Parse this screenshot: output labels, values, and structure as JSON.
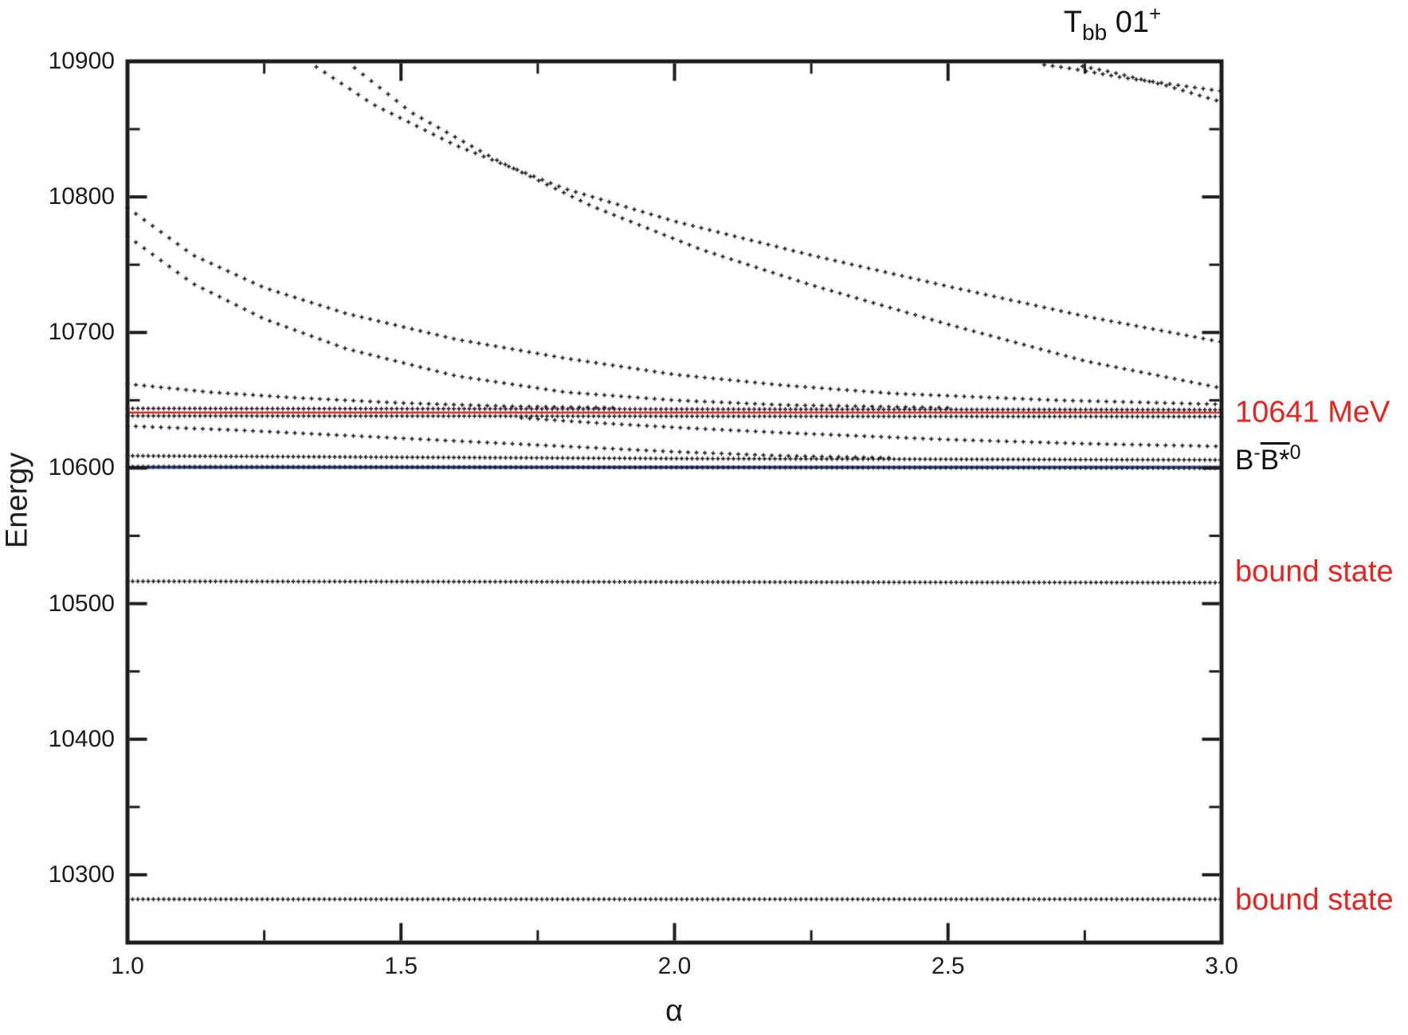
{
  "title": {
    "symbol": "T",
    "subscript": "bb",
    "state": "01",
    "superscript": "+"
  },
  "y_axis": {
    "label": "Energy"
  },
  "x_axis": {
    "label": "α"
  },
  "annotations": {
    "resonance_label": {
      "text": "10641 MeV",
      "color": "#e32621",
      "anchor_energy": 10641
    },
    "threshold_label": {
      "meson1": "B",
      "charge1": "-",
      "meson2": "B*",
      "charge2": "0",
      "color": "#111111",
      "anchor_energy": 10607
    },
    "bound_state_label_1": {
      "text": "bound state",
      "color": "#e32621",
      "anchor_energy": 10523
    },
    "bound_state_label_2": {
      "text": "bound state",
      "color": "#e32621",
      "anchor_energy": 10281
    }
  },
  "chart_data": {
    "type": "scatter",
    "title": "T_bb 01+ real-scaling energy spectrum",
    "xlabel": "α",
    "ylabel": "Energy",
    "xlim": [
      1.0,
      3.0
    ],
    "ylim": [
      10250,
      10900
    ],
    "x_major_ticks": [
      "1.0",
      "1.5",
      "2.0",
      "2.5",
      "3.0"
    ],
    "x_major_tick_values": [
      1.0,
      1.5,
      2.0,
      2.5,
      3.0
    ],
    "x_minor_tick_values": [
      1.25,
      1.75,
      2.25,
      2.75
    ],
    "y_major_ticks": [
      "10900",
      "10800",
      "10700",
      "10600",
      "10500",
      "10400",
      "10300"
    ],
    "y_major_tick_values": [
      10900,
      10800,
      10700,
      10600,
      10500,
      10400,
      10300
    ],
    "y_minor_tick_values": [
      10850,
      10750,
      10650,
      10550,
      10450,
      10350
    ],
    "grid": false,
    "marker": "plus",
    "marker_color": "#1c1c1c",
    "reference_lines": [
      {
        "name": "resonance-10641",
        "energy": 10641,
        "color": "#e32621",
        "width": 2.5
      },
      {
        "name": "threshold-B-Bstar0",
        "energy": 10600.5,
        "color": "#3a4d9e",
        "width": 4
      }
    ],
    "series": [
      {
        "name": "bound-state-1",
        "step": 6.5,
        "points": [
          [
            1.0,
            10282
          ],
          [
            3.0,
            10282
          ]
        ]
      },
      {
        "name": "bound-state-2",
        "step": 6.5,
        "points": [
          [
            1.0,
            10516.5
          ],
          [
            3.0,
            10515.5
          ]
        ]
      },
      {
        "name": "threshold-row-lower",
        "step": 6.5,
        "points": [
          [
            1.0,
            10601
          ],
          [
            3.0,
            10600
          ]
        ]
      },
      {
        "name": "threshold-row-upper",
        "step": 6.5,
        "points": [
          [
            1.0,
            10609
          ],
          [
            1.5,
            10608
          ],
          [
            2.0,
            10607
          ],
          [
            3.0,
            10606
          ]
        ]
      },
      {
        "name": "red-row-upper",
        "step": 6.5,
        "points": [
          [
            1.0,
            10644
          ],
          [
            3.0,
            10643
          ]
        ]
      },
      {
        "name": "red-row-lower",
        "step": 6.5,
        "points": [
          [
            1.0,
            10638.5
          ],
          [
            3.0,
            10638
          ]
        ]
      },
      {
        "name": "scatter-D1",
        "step": 10.5,
        "points": [
          [
            1.0,
            10662
          ],
          [
            1.15,
            10656
          ],
          [
            1.3,
            10652
          ],
          [
            1.5,
            10648
          ],
          [
            1.7,
            10645.5
          ],
          [
            1.9,
            10644.5
          ]
        ]
      },
      {
        "name": "scatter-D3",
        "step": 10.5,
        "points": [
          [
            1.0,
            10631
          ],
          [
            1.2,
            10628
          ],
          [
            1.4,
            10624
          ],
          [
            1.6,
            10620
          ],
          [
            1.8,
            10616
          ],
          [
            2.0,
            10612
          ],
          [
            2.2,
            10609
          ],
          [
            2.4,
            10607.5
          ]
        ]
      },
      {
        "name": "scatter-D2",
        "step": 10.5,
        "points": [
          [
            1.72,
            10637
          ],
          [
            1.85,
            10633.5
          ],
          [
            2.0,
            10630
          ],
          [
            2.2,
            10626
          ],
          [
            2.5,
            10621
          ],
          [
            2.75,
            10618
          ],
          [
            3.0,
            10616
          ]
        ]
      },
      {
        "name": "scatter-D4",
        "step": 10.5,
        "points": [
          [
            1.0,
            10792
          ],
          [
            1.12,
            10757
          ],
          [
            1.25,
            10733
          ],
          [
            1.4,
            10714
          ],
          [
            1.6,
            10695
          ],
          [
            1.8,
            10681
          ],
          [
            2.0,
            10669
          ],
          [
            2.2,
            10661
          ],
          [
            2.4,
            10655
          ],
          [
            2.7,
            10650
          ],
          [
            3.0,
            10647
          ]
        ]
      },
      {
        "name": "scatter-D5",
        "step": 10.5,
        "points": [
          [
            1.0,
            10771
          ],
          [
            1.12,
            10736
          ],
          [
            1.25,
            10710
          ],
          [
            1.4,
            10688
          ],
          [
            1.6,
            10668
          ],
          [
            1.8,
            10656
          ],
          [
            2.0,
            10650
          ],
          [
            2.2,
            10646.5
          ],
          [
            2.5,
            10644.5
          ]
        ]
      },
      {
        "name": "scatter-P2a",
        "step": 10.5,
        "points": [
          [
            1.33,
            10900
          ],
          [
            1.45,
            10868
          ],
          [
            1.6,
            10838
          ],
          [
            1.8,
            10806
          ],
          [
            2.0,
            10782
          ],
          [
            2.25,
            10757
          ],
          [
            2.5,
            10734
          ],
          [
            2.75,
            10712
          ],
          [
            3.0,
            10693
          ]
        ]
      },
      {
        "name": "scatter-P2b",
        "step": 10.5,
        "points": [
          [
            1.4,
            10900
          ],
          [
            1.52,
            10862
          ],
          [
            1.68,
            10826
          ],
          [
            1.85,
            10793
          ],
          [
            2.05,
            10761
          ],
          [
            2.25,
            10735
          ],
          [
            2.5,
            10706
          ],
          [
            2.75,
            10679
          ],
          [
            3.0,
            10659
          ]
        ]
      },
      {
        "name": "scatter-P3a",
        "step": 10.5,
        "points": [
          [
            2.63,
            10900
          ],
          [
            2.72,
            10895
          ],
          [
            2.82,
            10888
          ],
          [
            3.0,
            10878
          ]
        ]
      },
      {
        "name": "scatter-P3b",
        "step": 10.5,
        "points": [
          [
            2.7,
            10900
          ],
          [
            2.8,
            10892
          ],
          [
            2.9,
            10882
          ],
          [
            3.0,
            10870
          ]
        ]
      }
    ]
  }
}
